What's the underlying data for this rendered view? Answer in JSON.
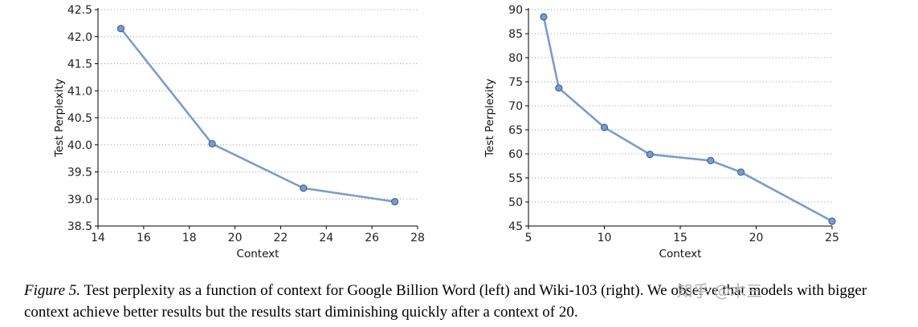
{
  "figure": {
    "caption_label": "Figure 5.",
    "caption_text": "Test perplexity as a function of context for Google Billion Word (left) and Wiki-103 (right).  We observe that models with bigger context achieve better results but the results start diminishing quickly after a context of 20."
  },
  "watermark": "知乎 @木三",
  "colors": {
    "line": "#7b9cc9",
    "marker_fill": "#7b9cc9",
    "marker_edge": "#40649a",
    "grid": "#9a9a9a",
    "axis": "#000000"
  },
  "chart_data": [
    {
      "type": "line",
      "title": "",
      "xlabel": "Context",
      "ylabel": "Test Perplexity",
      "xlim": [
        14,
        28
      ],
      "ylim": [
        38.5,
        42.5
      ],
      "x_ticks": [
        14,
        16,
        18,
        20,
        22,
        24,
        26,
        28
      ],
      "y_ticks": [
        38.5,
        39.0,
        39.5,
        40.0,
        40.5,
        41.0,
        41.5,
        42.0,
        42.5
      ],
      "x": [
        15,
        19,
        23,
        27
      ],
      "values": [
        42.15,
        40.02,
        39.2,
        38.95
      ],
      "grid": "horizontal-dotted",
      "legend_position": "none"
    },
    {
      "type": "line",
      "title": "",
      "xlabel": "Context",
      "ylabel": "Test Perplexity",
      "xlim": [
        5,
        25
      ],
      "ylim": [
        45,
        90
      ],
      "x_ticks": [
        5,
        10,
        15,
        20,
        25
      ],
      "y_ticks": [
        45,
        50,
        55,
        60,
        65,
        70,
        75,
        80,
        85,
        90
      ],
      "x": [
        6,
        7,
        10,
        13,
        17,
        19,
        25
      ],
      "values": [
        88.5,
        73.7,
        65.5,
        59.9,
        58.6,
        56.2,
        46.0
      ],
      "grid": "horizontal-dotted",
      "legend_position": "none"
    }
  ]
}
